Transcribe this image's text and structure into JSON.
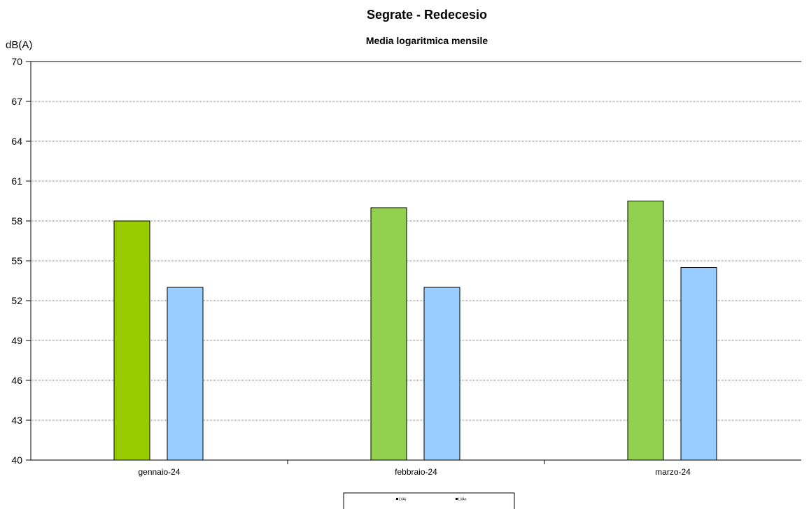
{
  "chart_data": {
    "type": "bar",
    "title": "Segrate - Redecesio",
    "subtitle": "Media logaritmica mensile",
    "ylabel": "dB(A)",
    "xlabel": "",
    "ylim": [
      40,
      70
    ],
    "yticks": [
      40,
      43,
      46,
      49,
      52,
      55,
      58,
      61,
      64,
      67,
      70
    ],
    "grid": true,
    "legend_position": "bottom-center",
    "categories": [
      "gennaio-24",
      "febbraio-24",
      "marzo-24"
    ],
    "series": [
      {
        "name": "LVAj",
        "values": [
          58.0,
          59.0,
          59.5
        ],
        "colors": [
          "#99cc00",
          "#92d050",
          "#92d050"
        ]
      },
      {
        "name": "LVAn",
        "values": [
          53.0,
          53.0,
          54.5
        ],
        "colors": [
          "#99ccff",
          "#99ccff",
          "#99ccff"
        ]
      }
    ]
  }
}
